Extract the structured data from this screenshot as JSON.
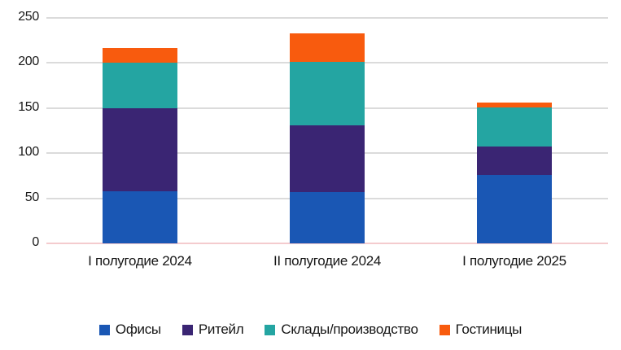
{
  "chart_data": {
    "type": "bar",
    "stacked": true,
    "title": "",
    "xlabel": "",
    "ylabel": "",
    "categories": [
      "I полугодие 2024",
      "II полугодие 2024",
      "I полугодие 2025"
    ],
    "series": [
      {
        "name": "Офисы",
        "color": "#1A57B4",
        "values": [
          58,
          57,
          76
        ]
      },
      {
        "name": "Ритейл",
        "color": "#3A2573",
        "values": [
          92,
          74,
          31
        ]
      },
      {
        "name": "Склады/производство",
        "color": "#24A5A2",
        "values": [
          50,
          70,
          44
        ]
      },
      {
        "name": "Гостиницы",
        "color": "#F85B0E",
        "values": [
          17,
          32,
          5
        ]
      }
    ],
    "totals": [
      217,
      233,
      156
    ],
    "ylim": [
      0,
      250
    ],
    "yticks": [
      0,
      50,
      100,
      150,
      200,
      250
    ],
    "grid": true,
    "legend_position": "bottom",
    "colors": {
      "gridline": "#DBDBDB",
      "zero_line": "#F4CBCE",
      "text": "#191919",
      "background": "#FFFFFF"
    }
  }
}
